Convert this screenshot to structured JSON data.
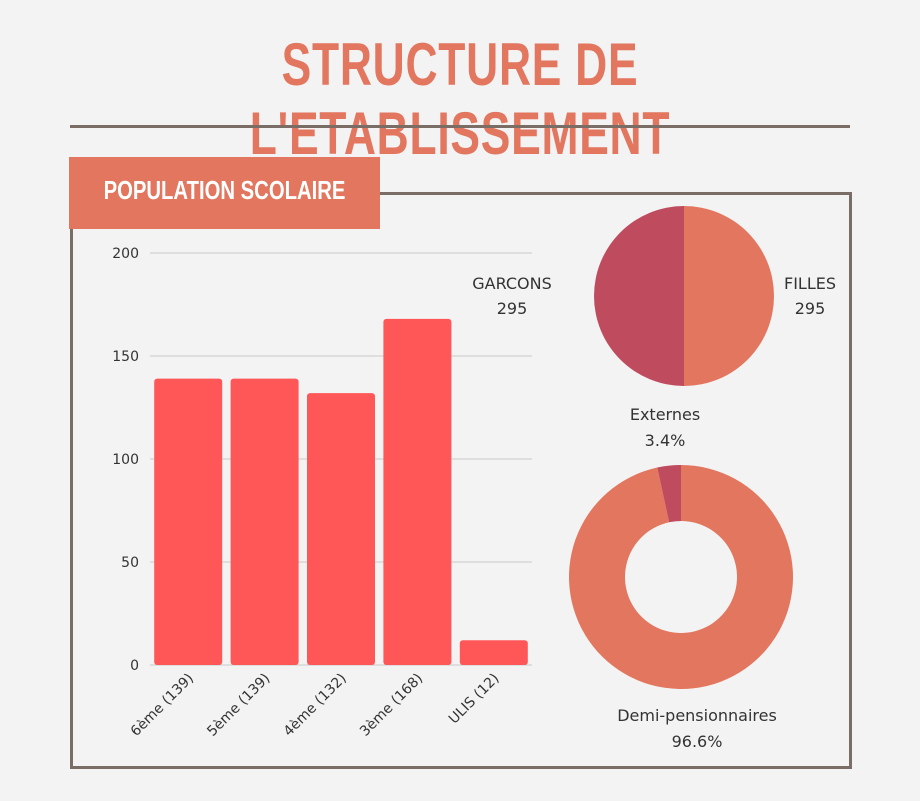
{
  "page": {
    "title": "STRUCTURE DE L'ETABLISSEMENT",
    "section_label": "POPULATION SCOLAIRE"
  },
  "colors": {
    "accent": "#e2765e",
    "bar": "#ff5757",
    "garcons": "#bf4b5e",
    "filles": "#e2765e",
    "externes": "#bf4b5e",
    "demi": "#e2765e",
    "frame": "#7a6d66",
    "grid": "#c8c8c8"
  },
  "chart_data": [
    {
      "type": "bar",
      "categories": [
        "6ème (139)",
        "5ème (139)",
        "4ème (132)",
        "3ème (168)",
        "ULIS (12)"
      ],
      "values": [
        139,
        139,
        132,
        168,
        12
      ],
      "ylim": [
        0,
        200
      ],
      "yticks": [
        0,
        50,
        100,
        150,
        200
      ],
      "grid": true
    },
    {
      "type": "pie",
      "labels": [
        "GARCONS",
        "FILLES"
      ],
      "values": [
        295,
        295
      ],
      "value_labels": [
        "295",
        "295"
      ]
    },
    {
      "type": "pie",
      "donut": true,
      "labels": [
        "Externes",
        "Demi-pensionnaires"
      ],
      "values": [
        3.4,
        96.6
      ],
      "value_labels": [
        "3.4%",
        "96.6%"
      ]
    }
  ]
}
